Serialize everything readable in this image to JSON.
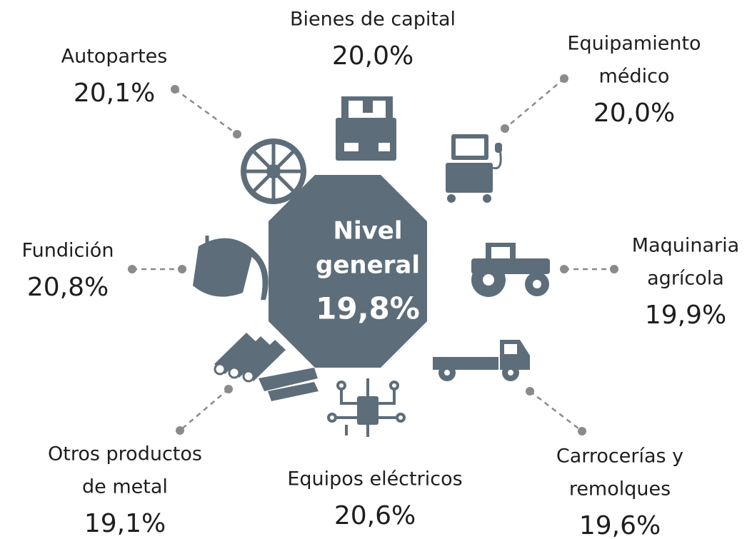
{
  "center": {
    "label_lines": [
      "Nivel",
      "general"
    ],
    "value": "19,8%"
  },
  "items": [
    {
      "label_lines": [
        "Bienes de capital"
      ],
      "value": "20,0%"
    },
    {
      "label_lines": [
        "Equipamiento",
        "médico"
      ],
      "value": "20,0%"
    },
    {
      "label_lines": [
        "Maquinaria",
        "agrícola"
      ],
      "value": "19,9%"
    },
    {
      "label_lines": [
        "Carrocerías y",
        "remolques"
      ],
      "value": "19,6%"
    },
    {
      "label_lines": [
        "Equipos eléctricos"
      ],
      "value": "20,6%"
    },
    {
      "label_lines": [
        "Otros productos",
        "de metal"
      ],
      "value": "19,1%"
    },
    {
      "label_lines": [
        "Fundición"
      ],
      "value": "20,8%"
    },
    {
      "label_lines": [
        "Autopartes"
      ],
      "value": "20,1%"
    }
  ]
}
